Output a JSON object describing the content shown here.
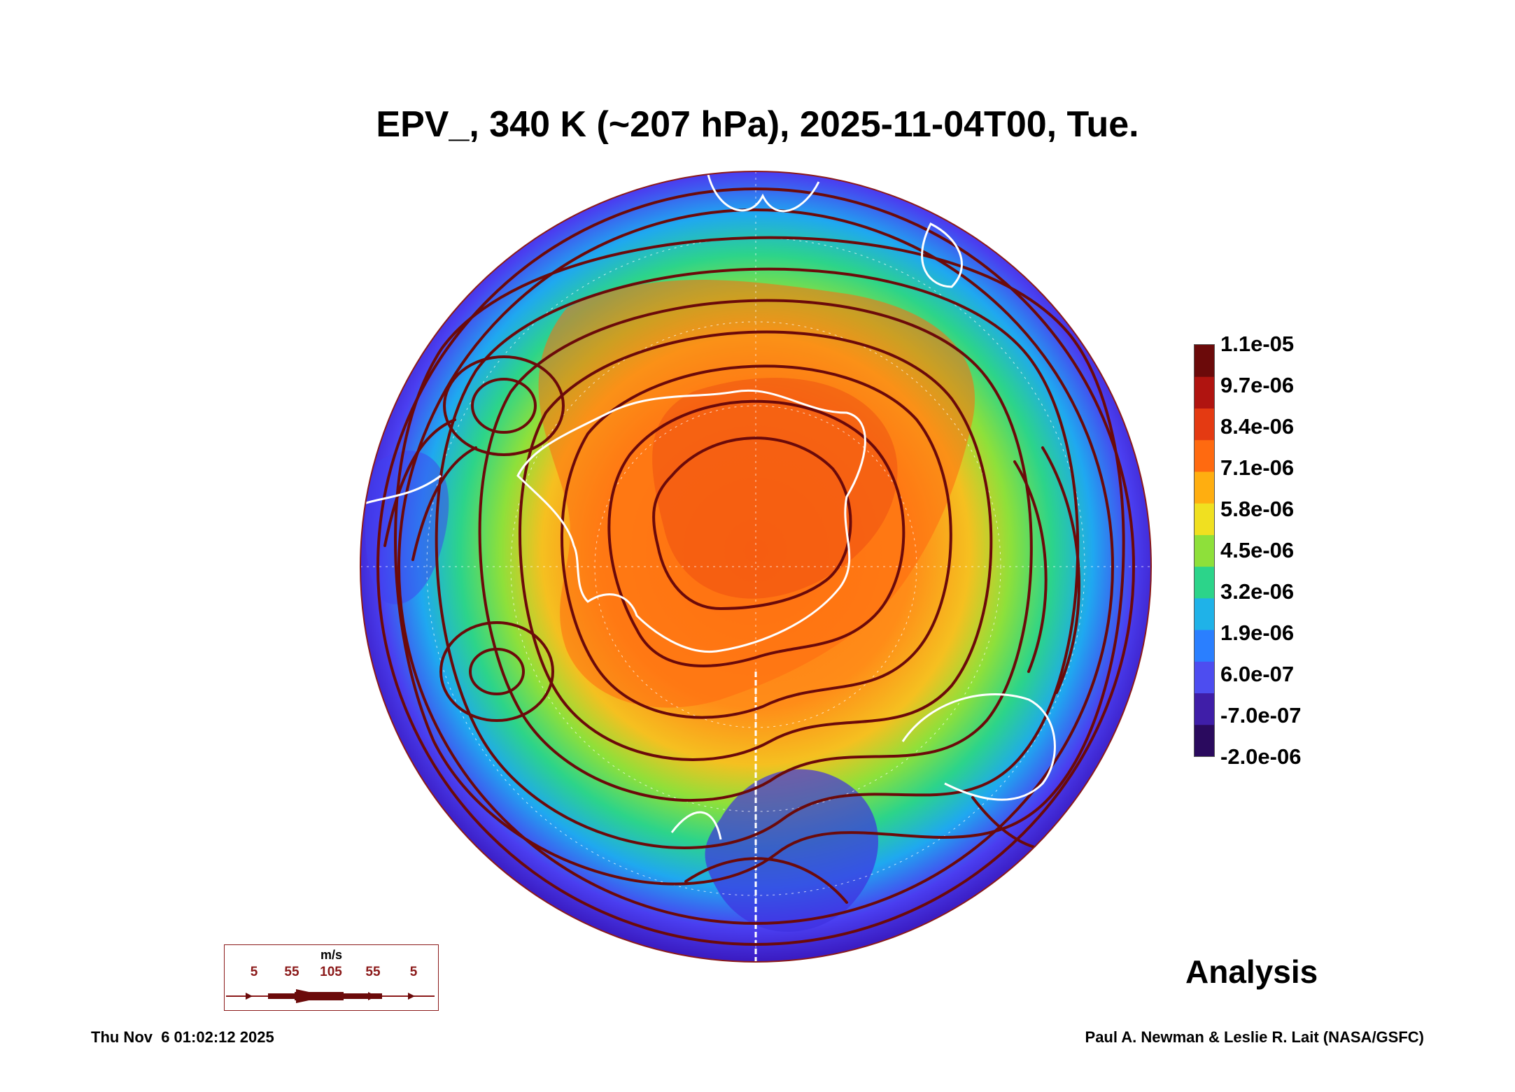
{
  "title": "EPV_, 340 K (~207 hPa), 2025-11-04T00, Tue.",
  "colorbar": {
    "labels": [
      "1.1e-05",
      "9.7e-06",
      "8.4e-06",
      "7.1e-06",
      "5.8e-06",
      "4.5e-06",
      "3.2e-06",
      "1.9e-06",
      "6.0e-07",
      "-7.0e-07",
      "-2.0e-06"
    ],
    "colors": [
      "#2a0a5e",
      "#3f1ea8",
      "#4d4df0",
      "#2a7fff",
      "#1fb2e8",
      "#2cd48a",
      "#8ee03a",
      "#f0e020",
      "#ffae10",
      "#ff6a10",
      "#e43a12",
      "#b01410",
      "#6b0a0a"
    ]
  },
  "wind_legend": {
    "unit": "m/s",
    "speeds": [
      "5",
      "55",
      "105",
      "55",
      "5"
    ]
  },
  "analysis_label": "Analysis",
  "footer": {
    "timestamp": "Thu Nov  6 01:02:12 2025",
    "credit": "Paul A. Newman & Leslie R. Lait (NASA/GSFC)"
  }
}
